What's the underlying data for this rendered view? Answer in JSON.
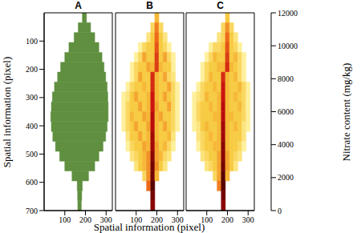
{
  "chart_data": [
    {
      "type": "image",
      "title": "A",
      "ylabel": "Spatial information (pixel)",
      "xlim": [
        0,
        330
      ],
      "ylim": [
        700,
        0
      ],
      "xticks": [
        100,
        200,
        300
      ],
      "yticks": [
        100,
        200,
        300,
        400,
        500,
        600,
        700
      ],
      "color": "#5f8f3f",
      "leaf": {
        "y": [
          0,
          35,
          70,
          105,
          140,
          175,
          210,
          245,
          280,
          315,
          350,
          385,
          420,
          455,
          490,
          525,
          560,
          595,
          630,
          665,
          700
        ],
        "left": [
          185,
          165,
          145,
          120,
          100,
          80,
          65,
          50,
          40,
          35,
          32,
          35,
          42,
          55,
          75,
          100,
          135,
          160,
          162,
          163
        ],
        "right": [
          205,
          225,
          245,
          265,
          280,
          290,
          298,
          305,
          308,
          310,
          310,
          305,
          298,
          285,
          265,
          245,
          215,
          185,
          182,
          180
        ]
      }
    },
    {
      "type": "heatmap",
      "title": "B",
      "xlabel": "Spatial information (pixel)",
      "xlim": [
        0,
        330
      ],
      "ylim": [
        700,
        0
      ],
      "xticks": [
        100,
        200,
        300
      ],
      "yticks": [
        100,
        200,
        300,
        400,
        500,
        600,
        700
      ],
      "tick_labels": "x",
      "cells": {
        "x": [
          30,
          50,
          70,
          90,
          110,
          130,
          150,
          170,
          190,
          210,
          230,
          250,
          270,
          290,
          310
        ],
        "y": [
          0,
          35,
          70,
          105,
          140,
          175,
          210,
          245,
          280,
          315,
          350,
          385,
          420,
          455,
          490,
          525,
          560,
          595,
          630,
          665,
          700
        ],
        "values": [
          [
            null,
            null,
            null,
            null,
            null,
            null,
            null,
            null,
            4000,
            null,
            null,
            null,
            null,
            null
          ],
          [
            null,
            null,
            null,
            null,
            null,
            null,
            null,
            3000,
            5500,
            3000,
            null,
            null,
            null,
            null
          ],
          [
            null,
            null,
            null,
            null,
            null,
            null,
            2500,
            3500,
            6000,
            3500,
            2500,
            null,
            null,
            null
          ],
          [
            null,
            null,
            null,
            null,
            2000,
            3000,
            3500,
            3500,
            6500,
            3500,
            3000,
            2000,
            null,
            null
          ],
          [
            null,
            null,
            null,
            2000,
            3000,
            4500,
            3500,
            3500,
            7000,
            3500,
            4500,
            3000,
            2000,
            null
          ],
          [
            null,
            null,
            2000,
            3000,
            3500,
            3500,
            4500,
            4000,
            7000,
            4000,
            3500,
            3500,
            2000,
            null
          ],
          [
            null,
            null,
            2000,
            3000,
            4500,
            3500,
            3500,
            7500,
            4000,
            3500,
            4500,
            3000,
            2500,
            null
          ],
          [
            null,
            2000,
            3000,
            3500,
            3500,
            4000,
            3500,
            7500,
            4000,
            3500,
            3500,
            4500,
            3000,
            2000
          ],
          [
            2000,
            2500,
            3500,
            4500,
            3500,
            3500,
            4000,
            8000,
            4000,
            3500,
            4500,
            3500,
            3000,
            2000
          ],
          [
            2000,
            3000,
            3500,
            3500,
            4500,
            3500,
            4000,
            8000,
            4500,
            3500,
            3500,
            4500,
            3000,
            2000
          ],
          [
            2000,
            3000,
            4000,
            3500,
            3500,
            4500,
            4000,
            8500,
            4000,
            4500,
            3500,
            3500,
            3000,
            2000
          ],
          [
            2000,
            3000,
            3500,
            4500,
            3500,
            3500,
            4500,
            8500,
            4000,
            3500,
            4500,
            3500,
            3000,
            2000
          ],
          [
            null,
            2500,
            3500,
            3500,
            4500,
            3500,
            4000,
            9000,
            4000,
            3500,
            3500,
            4000,
            2500,
            null
          ],
          [
            null,
            2000,
            3000,
            3500,
            3500,
            4500,
            4000,
            9000,
            4500,
            3500,
            4000,
            3000,
            2000,
            null
          ],
          [
            null,
            null,
            2500,
            3000,
            3500,
            4000,
            5000,
            9500,
            4500,
            4000,
            3000,
            2500,
            null,
            null
          ],
          [
            null,
            null,
            null,
            2500,
            3500,
            4000,
            5000,
            10000,
            5000,
            3500,
            2500,
            null,
            null,
            null
          ],
          [
            null,
            null,
            null,
            null,
            null,
            3000,
            5000,
            10000,
            4000,
            null,
            null,
            null,
            null,
            null
          ],
          [
            null,
            null,
            null,
            null,
            null,
            null,
            6000,
            10500,
            null,
            null,
            null,
            null,
            null,
            null
          ],
          [
            null,
            null,
            null,
            null,
            null,
            null,
            null,
            10000,
            null,
            null,
            null,
            null,
            null,
            null
          ],
          [
            null,
            null,
            null,
            null,
            null,
            null,
            null,
            9500,
            null,
            null,
            null,
            null,
            null,
            null
          ]
        ]
      }
    },
    {
      "type": "heatmap",
      "title": "C",
      "xlim": [
        0,
        330
      ],
      "ylim": [
        700,
        0
      ],
      "xticks": [
        100,
        200,
        300
      ],
      "yticks": [
        100,
        200,
        300,
        400,
        500,
        600,
        700
      ],
      "tick_labels": "x",
      "cells": {
        "x": [
          30,
          50,
          70,
          90,
          110,
          130,
          150,
          170,
          190,
          210,
          230,
          250,
          270,
          290,
          310
        ],
        "y": [
          0,
          35,
          70,
          105,
          140,
          175,
          210,
          245,
          280,
          315,
          350,
          385,
          420,
          455,
          490,
          525,
          560,
          595,
          630,
          665,
          700
        ],
        "values": [
          [
            null,
            null,
            null,
            null,
            null,
            null,
            null,
            null,
            3500,
            null,
            null,
            null,
            null,
            null
          ],
          [
            null,
            null,
            null,
            null,
            null,
            null,
            null,
            3000,
            5000,
            3000,
            null,
            null,
            null,
            null
          ],
          [
            null,
            null,
            null,
            null,
            null,
            null,
            2500,
            3000,
            6000,
            3500,
            2500,
            null,
            null,
            null
          ],
          [
            null,
            null,
            null,
            null,
            2000,
            3000,
            3000,
            3500,
            6500,
            3500,
            3000,
            2000,
            null,
            null
          ],
          [
            null,
            null,
            null,
            2000,
            3000,
            4000,
            3500,
            3500,
            7000,
            3500,
            4000,
            3000,
            2000,
            null
          ],
          [
            null,
            null,
            2000,
            3000,
            3500,
            3500,
            4000,
            4000,
            7500,
            4000,
            3500,
            3000,
            2000,
            null
          ],
          [
            null,
            null,
            2000,
            3000,
            4000,
            3500,
            3500,
            7500,
            4000,
            3500,
            4000,
            3000,
            2000,
            null
          ],
          [
            null,
            2000,
            3000,
            3500,
            3500,
            4000,
            3500,
            8000,
            4000,
            3500,
            3500,
            4000,
            3000,
            2000
          ],
          [
            2000,
            2500,
            3000,
            4000,
            3500,
            3500,
            4000,
            8000,
            4000,
            3500,
            4000,
            3500,
            3000,
            2000
          ],
          [
            2000,
            3000,
            3500,
            3500,
            4000,
            3500,
            4000,
            8500,
            4000,
            3500,
            3500,
            4000,
            3000,
            2000
          ],
          [
            2000,
            3000,
            3500,
            3500,
            3500,
            4000,
            4000,
            8500,
            4000,
            4000,
            3500,
            3500,
            3000,
            2000
          ],
          [
            2000,
            2500,
            3500,
            4000,
            3500,
            3500,
            4000,
            9000,
            4000,
            3500,
            4000,
            3500,
            2500,
            2000
          ],
          [
            null,
            2500,
            3000,
            3500,
            4000,
            3500,
            4000,
            9000,
            4000,
            3500,
            3500,
            3500,
            2500,
            null
          ],
          [
            null,
            2000,
            3000,
            3500,
            3500,
            4000,
            4000,
            9500,
            4000,
            3500,
            3500,
            3000,
            2000,
            null
          ],
          [
            null,
            null,
            2500,
            3000,
            3500,
            3500,
            4500,
            9500,
            4500,
            3500,
            3000,
            2500,
            null,
            null
          ],
          [
            null,
            null,
            null,
            2500,
            3000,
            3500,
            4500,
            10000,
            4500,
            3500,
            2500,
            null,
            null,
            null
          ],
          [
            null,
            null,
            null,
            null,
            null,
            3000,
            4500,
            10500,
            4000,
            null,
            null,
            null,
            null,
            null
          ],
          [
            null,
            null,
            null,
            null,
            null,
            null,
            5500,
            10500,
            null,
            null,
            null,
            null,
            null,
            null
          ],
          [
            null,
            null,
            null,
            null,
            null,
            null,
            null,
            10000,
            null,
            null,
            null,
            null,
            null,
            null
          ],
          [
            null,
            null,
            null,
            null,
            null,
            null,
            null,
            9500,
            null,
            null,
            null,
            null,
            null,
            null
          ]
        ]
      },
      "colorbar": {
        "range": [
          0,
          12000
        ],
        "ticks": [
          0,
          2000,
          4000,
          6000,
          8000,
          10000,
          12000
        ],
        "label": "Nitrate content (mg/kg)"
      }
    }
  ]
}
